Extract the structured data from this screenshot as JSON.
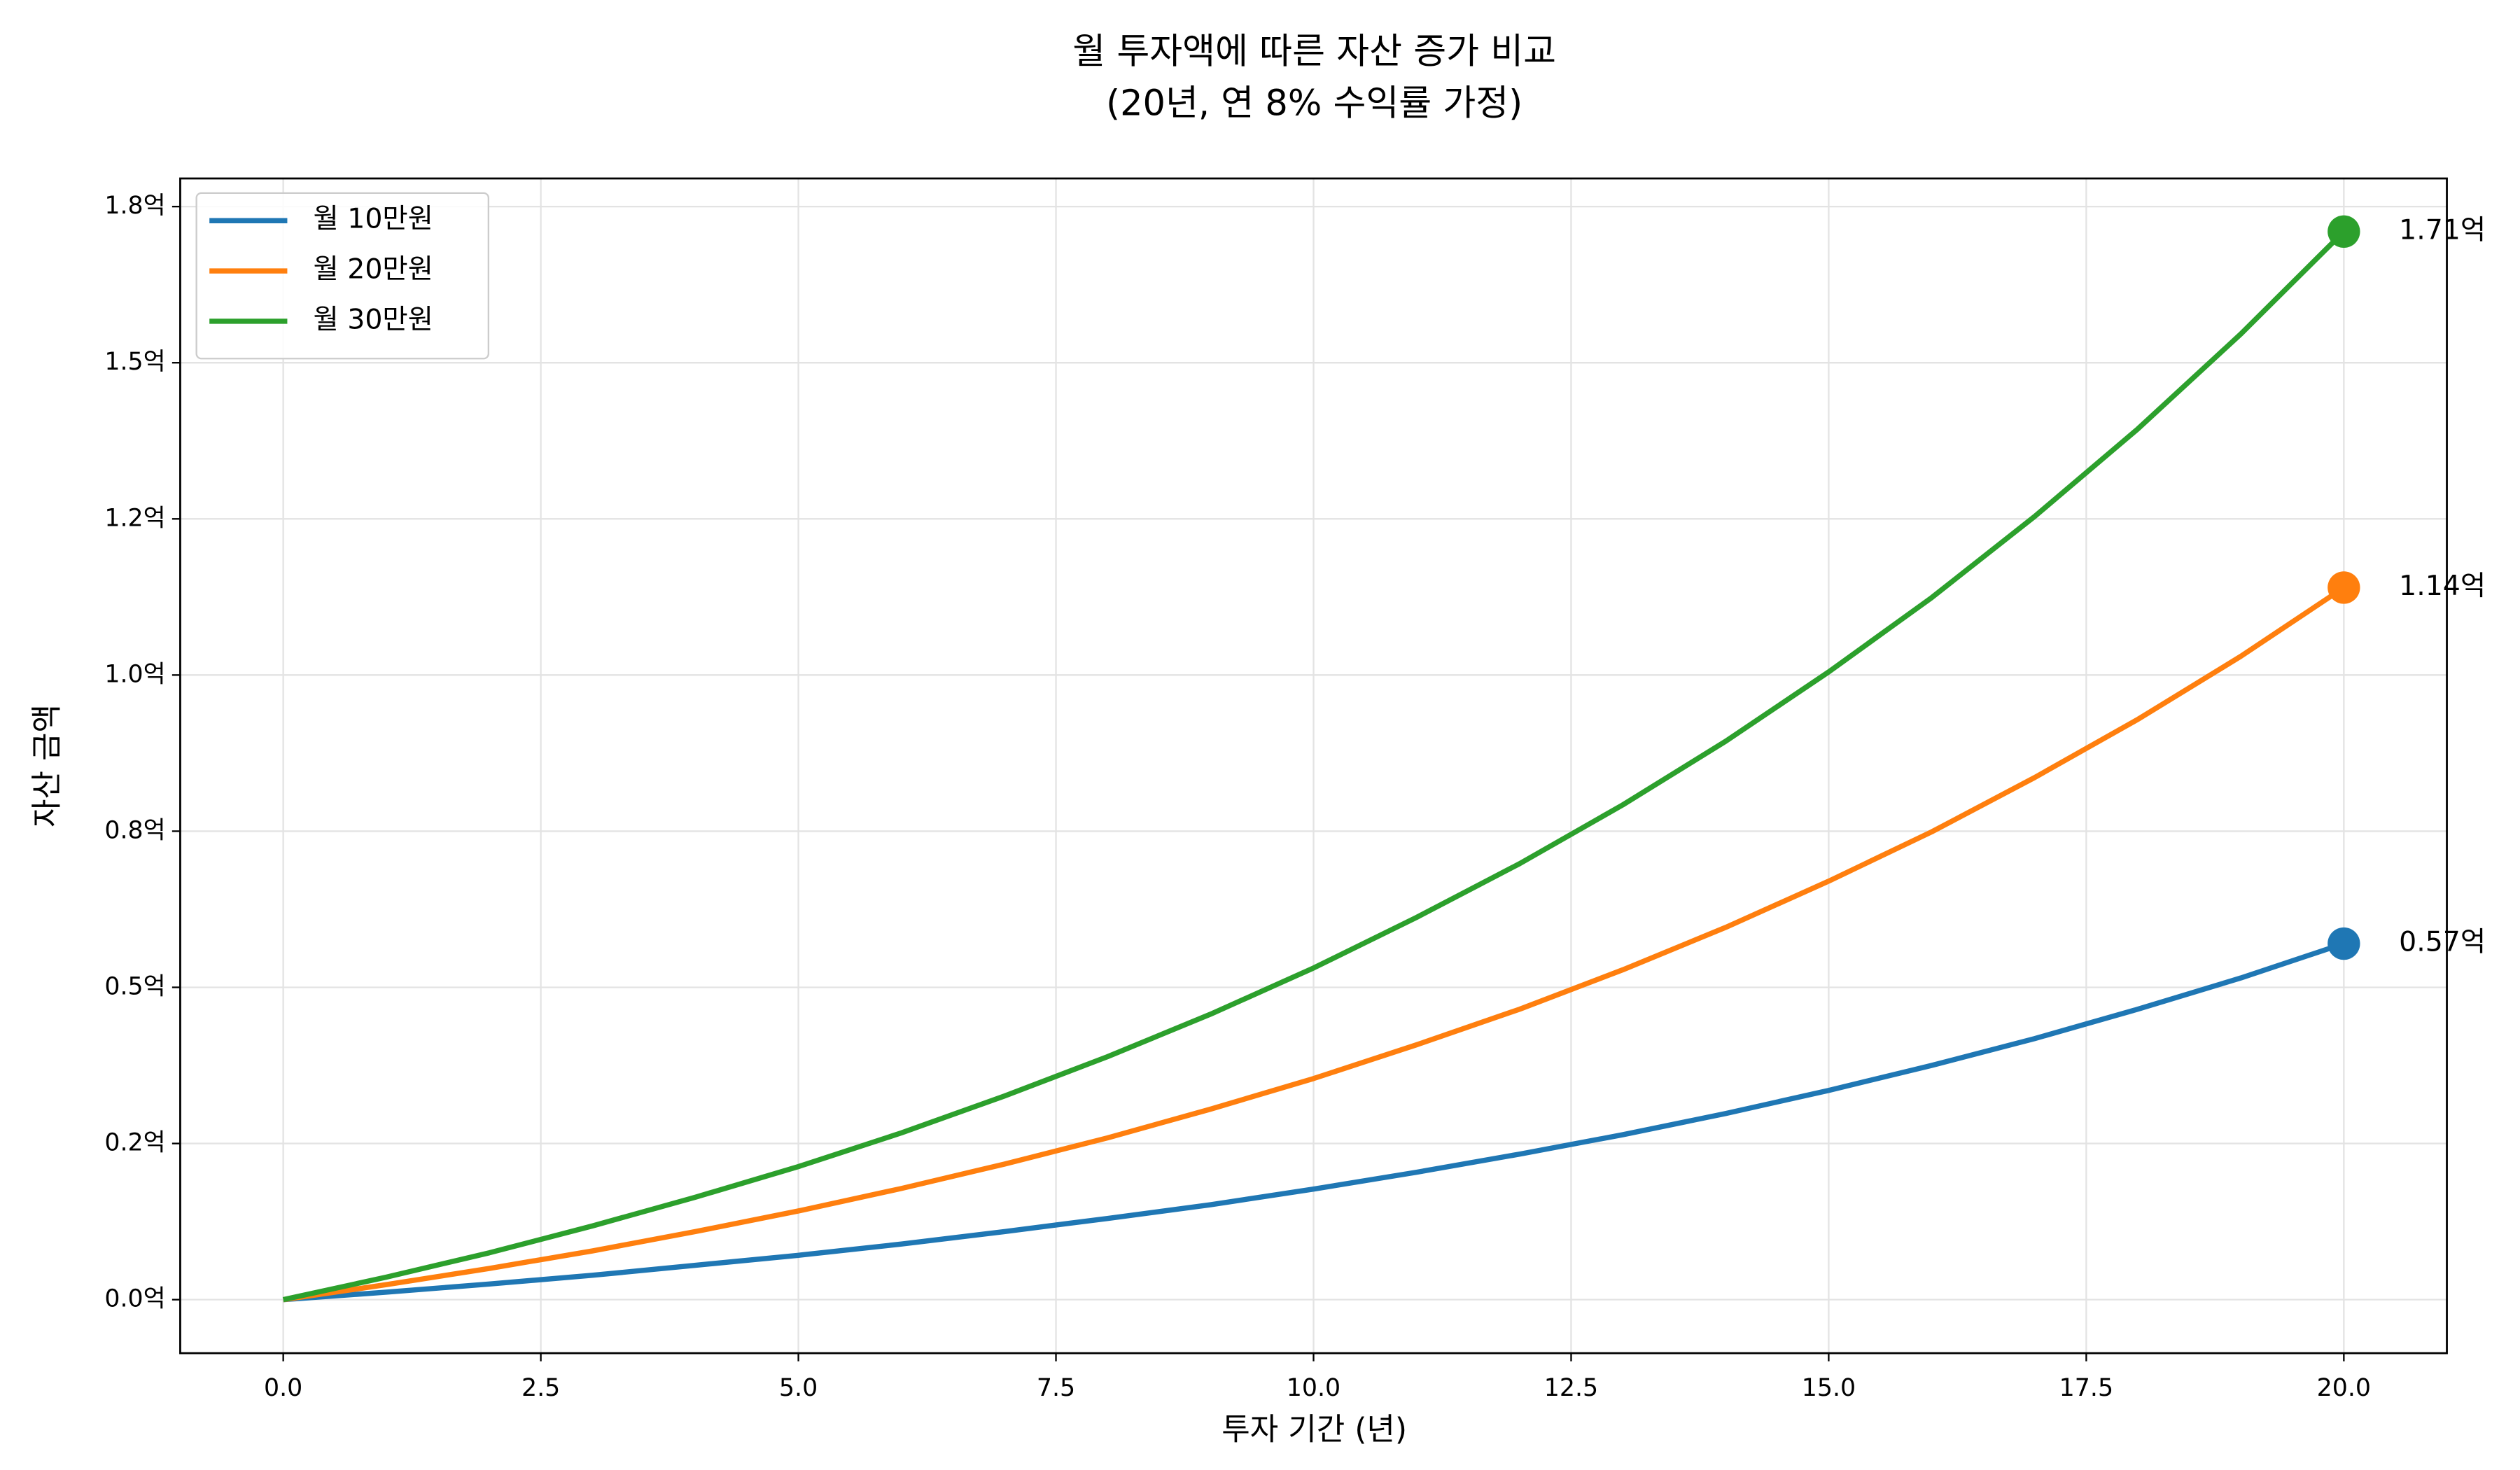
{
  "chart_data": {
    "type": "line",
    "title": "월 투자액에 따른 자산 증가 비교",
    "subtitle": "(20년, 연 8% 수익률 가정)",
    "x_label": "투자 기간 (년)",
    "y_label": "자산 금액",
    "x": [
      0,
      1,
      2,
      3,
      4,
      5,
      6,
      7,
      8,
      9,
      10,
      11,
      12,
      13,
      14,
      15,
      16,
      17,
      18,
      19,
      20
    ],
    "series": [
      {
        "name": "월 10만원",
        "color": "#1f77b4",
        "end_label": "0.57억",
        "values": [
          0,
          0.012,
          0.025,
          0.039,
          0.055,
          0.071,
          0.089,
          0.109,
          0.13,
          0.152,
          0.177,
          0.204,
          0.233,
          0.264,
          0.298,
          0.335,
          0.375,
          0.418,
          0.465,
          0.515,
          0.57
        ]
      },
      {
        "name": "월 20만원",
        "color": "#ff7f0e",
        "end_label": "1.14억",
        "values": [
          0,
          0.024,
          0.05,
          0.078,
          0.109,
          0.142,
          0.178,
          0.217,
          0.259,
          0.305,
          0.354,
          0.408,
          0.465,
          0.528,
          0.596,
          0.67,
          0.749,
          0.836,
          0.929,
          1.03,
          1.14
        ]
      },
      {
        "name": "월 30만원",
        "color": "#2ca02c",
        "end_label": "1.71억",
        "values": [
          0,
          0.036,
          0.075,
          0.118,
          0.164,
          0.213,
          0.267,
          0.326,
          0.389,
          0.457,
          0.531,
          0.612,
          0.698,
          0.792,
          0.894,
          1.005,
          1.124,
          1.254,
          1.394,
          1.546,
          1.71
        ]
      }
    ],
    "xlim": [
      -1,
      21
    ],
    "xticks": [
      {
        "value": 0,
        "label": "0.0"
      },
      2.5,
      {
        "value": 5,
        "label": "5.0"
      },
      7.5,
      {
        "value": 10,
        "label": "10.0"
      },
      12.5,
      {
        "value": 15,
        "label": "15.0"
      },
      17.5,
      {
        "value": 20,
        "label": "20.0"
      }
    ],
    "ylim": [
      -0.0857,
      1.795
    ],
    "yticks": [
      {
        "value": 0,
        "label": "0.0억"
      },
      {
        "value": 0.25,
        "label": "0.2억"
      },
      {
        "value": 0.5,
        "label": "0.5억"
      },
      {
        "value": 0.75,
        "label": "0.8억"
      },
      {
        "value": 1,
        "label": "1.0억"
      },
      {
        "value": 1.25,
        "label": "1.2억"
      },
      {
        "value": 1.5,
        "label": "1.5억"
      },
      {
        "value": 1.75,
        "label": "1.8억"
      }
    ],
    "grid": true,
    "legend": "upper-left"
  }
}
